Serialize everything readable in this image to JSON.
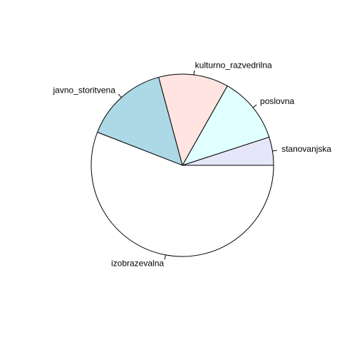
{
  "chart_data": {
    "type": "pie",
    "title": "",
    "start_angle_deg": 0,
    "direction": "counterclockwise",
    "labels": [
      "stanovanjska",
      "poslovna",
      "kulturno_razvedrilna",
      "javno_storitvena",
      "izobrazevalna"
    ],
    "values": [
      0.05,
      0.118,
      0.124,
      0.149,
      0.559
    ],
    "colors": [
      "#E6E6FA",
      "#E0FFFF",
      "#FFE4E1",
      "#ADD8E6",
      "#FFFFFF"
    ],
    "border_color": "#000000"
  }
}
